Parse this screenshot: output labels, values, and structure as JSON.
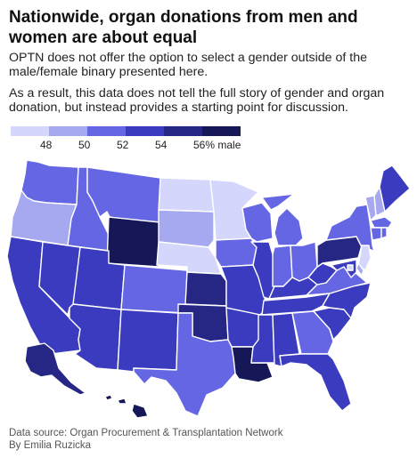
{
  "title": "Nationwide, organ donations from men and women are about equal",
  "subtitle": [
    "OPTN does not offer the option to select a gender outside of the male/female binary presented here.",
    "As a result, this data does not tell the full story of gender and organ donation, but instead provides a starting point for discussion."
  ],
  "legend": {
    "labels": [
      "48",
      "50",
      "52",
      "54",
      "56% male"
    ],
    "colors": [
      "#d4d6fb",
      "#a6a8f0",
      "#6566e4",
      "#3a3bbf",
      "#262784",
      "#151756"
    ]
  },
  "colors": {
    "c1": "#d4d6fb",
    "c2": "#a6a8f0",
    "c3": "#6566e4",
    "c4": "#3a3bbf",
    "c5": "#262784",
    "c6": "#151756"
  },
  "states": [
    {
      "abbr": "WA",
      "cls": "c3"
    },
    {
      "abbr": "OR",
      "cls": "c2"
    },
    {
      "abbr": "CA",
      "cls": "c4"
    },
    {
      "abbr": "ID",
      "cls": "c3"
    },
    {
      "abbr": "NV",
      "cls": "c4"
    },
    {
      "abbr": "MT",
      "cls": "c3"
    },
    {
      "abbr": "WY",
      "cls": "c6"
    },
    {
      "abbr": "UT",
      "cls": "c4"
    },
    {
      "abbr": "AZ",
      "cls": "c4"
    },
    {
      "abbr": "CO",
      "cls": "c3"
    },
    {
      "abbr": "NM",
      "cls": "c4"
    },
    {
      "abbr": "ND",
      "cls": "c1"
    },
    {
      "abbr": "SD",
      "cls": "c2"
    },
    {
      "abbr": "NE",
      "cls": "c1"
    },
    {
      "abbr": "KS",
      "cls": "c5"
    },
    {
      "abbr": "OK",
      "cls": "c5"
    },
    {
      "abbr": "TX",
      "cls": "c3"
    },
    {
      "abbr": "MN",
      "cls": "c1"
    },
    {
      "abbr": "IA",
      "cls": "c3"
    },
    {
      "abbr": "MO",
      "cls": "c4"
    },
    {
      "abbr": "AR",
      "cls": "c4"
    },
    {
      "abbr": "LA",
      "cls": "c6"
    },
    {
      "abbr": "WI",
      "cls": "c3"
    },
    {
      "abbr": "IL",
      "cls": "c4"
    },
    {
      "abbr": "MI",
      "cls": "c3"
    },
    {
      "abbr": "IN",
      "cls": "c3"
    },
    {
      "abbr": "OH",
      "cls": "c3"
    },
    {
      "abbr": "KY",
      "cls": "c4"
    },
    {
      "abbr": "TN",
      "cls": "c4"
    },
    {
      "abbr": "MS",
      "cls": "c4"
    },
    {
      "abbr": "AL",
      "cls": "c4"
    },
    {
      "abbr": "GA",
      "cls": "c3"
    },
    {
      "abbr": "FL",
      "cls": "c4"
    },
    {
      "abbr": "SC",
      "cls": "c4"
    },
    {
      "abbr": "NC",
      "cls": "c4"
    },
    {
      "abbr": "VA",
      "cls": "c3"
    },
    {
      "abbr": "WV",
      "cls": "c4"
    },
    {
      "abbr": "PA",
      "cls": "c5"
    },
    {
      "abbr": "NY",
      "cls": "c3"
    },
    {
      "abbr": "VT",
      "cls": "c2"
    },
    {
      "abbr": "NH",
      "cls": "c2"
    },
    {
      "abbr": "ME",
      "cls": "c4"
    },
    {
      "abbr": "MA",
      "cls": "c3"
    },
    {
      "abbr": "CT",
      "cls": "c3"
    },
    {
      "abbr": "RI",
      "cls": "c3"
    },
    {
      "abbr": "NJ",
      "cls": "c1"
    },
    {
      "abbr": "DE",
      "cls": "c2"
    },
    {
      "abbr": "MD",
      "cls": "c4"
    },
    {
      "abbr": "DC",
      "cls": "c1"
    },
    {
      "abbr": "AK",
      "cls": "c5"
    },
    {
      "abbr": "HI",
      "cls": "c6"
    }
  ],
  "footer": {
    "source": "Data source: Organ Procurement & Transplantation Network",
    "byline": "By Emilia Ruzicka"
  }
}
